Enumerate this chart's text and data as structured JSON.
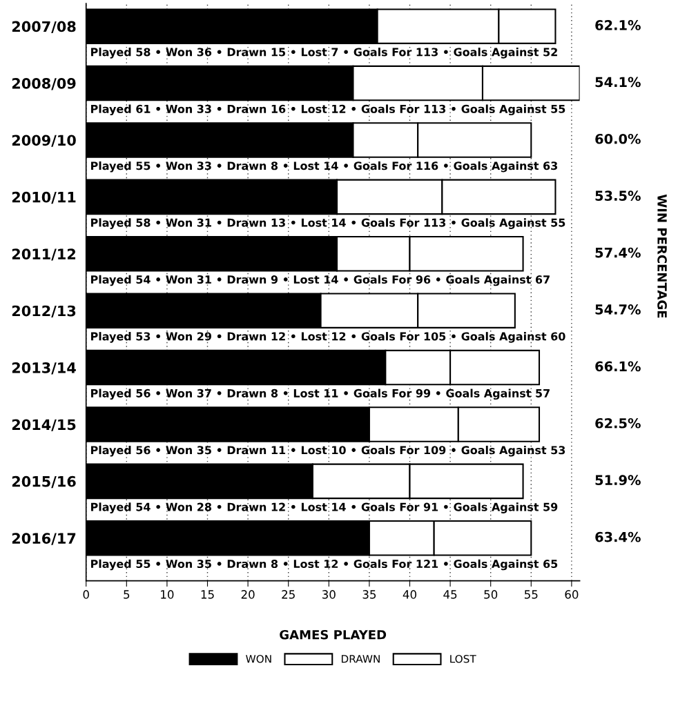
{
  "chart_data": {
    "type": "bar",
    "orientation": "horizontal",
    "stacked": true,
    "categories": [
      "2007/08",
      "2008/09",
      "2009/10",
      "2010/11",
      "2011/12",
      "2012/13",
      "2013/14",
      "2014/15",
      "2015/16",
      "2016/17"
    ],
    "series": [
      {
        "name": "WON",
        "color": "#000000",
        "values": [
          36,
          33,
          33,
          31,
          31,
          29,
          37,
          35,
          28,
          35
        ]
      },
      {
        "name": "DRAWN",
        "color": "#ffffff",
        "values": [
          15,
          16,
          8,
          13,
          9,
          12,
          8,
          11,
          12,
          8
        ]
      },
      {
        "name": "LOST",
        "color": "#ffffff",
        "values": [
          7,
          12,
          14,
          14,
          14,
          12,
          11,
          10,
          14,
          12
        ]
      }
    ],
    "xlabel": "GAMES PLAYED",
    "xlim": [
      0,
      61
    ],
    "xticks": [
      0,
      5,
      10,
      15,
      20,
      25,
      30,
      35,
      40,
      45,
      50,
      55,
      60
    ],
    "grid": "x",
    "legend": "bottom",
    "annotations": [
      "62.1%",
      "54.1%",
      "60.0%",
      "53.5%",
      "57.4%",
      "54.7%",
      "66.1%",
      "62.5%",
      "51.9%",
      "63.4%",
      "Played 58 • Won 36 • Drawn 15 • Lost 7 • Goals For 113 • Goals Against 52",
      "Played 61 • Won 33 • Drawn 16 • Lost 12 • Goals For 113 • Goals Against 55",
      "Played 55 • Won 33 • Drawn 8 • Lost 14 • Goals For 116 • Goals Against 63",
      "Played 58 • Won 31 • Drawn 13 • Lost 14 • Goals For 113 • Goals Against 55",
      "Played 54 • Won 31 • Drawn 9 • Lost 14 • Goals For 96 • Goals Against 67",
      "Played 53 • Won 29 • Drawn 12 • Lost 12 • Goals For 105 • Goals Against 60",
      "Played 56 • Won 37 • Drawn 8 • Lost 11 • Goals For 99 • Goals Against 57",
      "Played 56 • Won 35 • Drawn 11 • Lost 10 • Goals For 109 • Goals Against 53",
      "Played 54 • Won 28 • Drawn 12 • Lost 14 • Goals For 91 • Goals Against 59",
      "Played 55 • Won 35 • Drawn 8 • Lost 12 • Goals For 121 • Goals Against 65",
      "WIN PERCENTAGE"
    ]
  }
}
